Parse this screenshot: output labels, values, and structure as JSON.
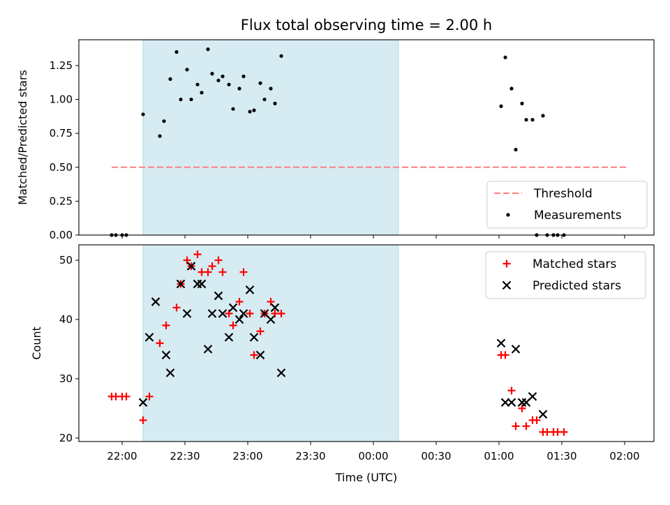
{
  "chart_data": {
    "title": "Flux total observing time = 2.00 h",
    "xlabel": "Time (UTC)",
    "x_ticks": [
      "22:00",
      "22:30",
      "23:00",
      "23:30",
      "00:00",
      "00:30",
      "01:00",
      "01:30",
      "02:00"
    ],
    "colors": {
      "threshold": "#ff7f7f",
      "matched": "#ff0000",
      "predicted": "#000000",
      "shade": "#add8e6"
    },
    "shaded_interval": [
      "22:10",
      "00:12"
    ],
    "panels": [
      {
        "type": "scatter",
        "ylabel": "Matched/Predicted stars",
        "ylim": [
          0,
          1.44
        ],
        "y_ticks": [
          "0.00",
          "0.25",
          "0.50",
          "0.75",
          "1.00",
          "1.25"
        ],
        "threshold": {
          "name": "Threshold",
          "value": 0.5,
          "x_range": [
            "21:55",
            "02:02"
          ]
        },
        "legend": {
          "position": "lower right",
          "entries": [
            "Threshold",
            "Measurements"
          ]
        },
        "series": [
          {
            "name": "Measurements",
            "points": [
              [
                "21:55",
                0.0
              ],
              [
                "21:57",
                0.0
              ],
              [
                "22:00",
                0.0
              ],
              [
                "22:02",
                0.0
              ],
              [
                "22:10",
                0.89
              ],
              [
                "22:18",
                0.73
              ],
              [
                "22:20",
                0.84
              ],
              [
                "22:23",
                1.15
              ],
              [
                "22:26",
                1.35
              ],
              [
                "22:28",
                1.0
              ],
              [
                "22:31",
                1.22
              ],
              [
                "22:33",
                1.0
              ],
              [
                "22:36",
                1.11
              ],
              [
                "22:38",
                1.05
              ],
              [
                "22:41",
                1.37
              ],
              [
                "22:43",
                1.19
              ],
              [
                "22:46",
                1.14
              ],
              [
                "22:48",
                1.17
              ],
              [
                "22:51",
                1.11
              ],
              [
                "22:53",
                0.93
              ],
              [
                "22:56",
                1.08
              ],
              [
                "22:58",
                1.17
              ],
              [
                "23:01",
                0.91
              ],
              [
                "23:03",
                0.92
              ],
              [
                "23:06",
                1.12
              ],
              [
                "23:08",
                1.0
              ],
              [
                "23:11",
                1.08
              ],
              [
                "23:13",
                0.97
              ],
              [
                "23:16",
                1.32
              ],
              [
                "01:01",
                0.95
              ],
              [
                "01:03",
                1.31
              ],
              [
                "01:06",
                1.08
              ],
              [
                "01:08",
                0.63
              ],
              [
                "01:11",
                0.97
              ],
              [
                "01:13",
                0.85
              ],
              [
                "01:16",
                0.85
              ],
              [
                "01:18",
                0.0
              ],
              [
                "01:21",
                0.88
              ],
              [
                "01:23",
                0.0
              ],
              [
                "01:26",
                0.0
              ],
              [
                "01:28",
                0.0
              ],
              [
                "01:31",
                0.0
              ]
            ]
          }
        ]
      },
      {
        "type": "scatter",
        "ylabel": "Count",
        "ylim": [
          19.4,
          52.6
        ],
        "y_ticks": [
          "20",
          "30",
          "40",
          "50"
        ],
        "legend": {
          "position": "upper right",
          "entries": [
            "Matched stars",
            "Predicted stars"
          ]
        },
        "series": [
          {
            "name": "Matched stars",
            "marker": "plus",
            "points": [
              [
                "21:55",
                27
              ],
              [
                "21:57",
                27
              ],
              [
                "22:00",
                27
              ],
              [
                "22:02",
                27
              ],
              [
                "22:10",
                23
              ],
              [
                "22:13",
                27
              ],
              [
                "22:18",
                36
              ],
              [
                "22:21",
                39
              ],
              [
                "22:26",
                42
              ],
              [
                "22:28",
                46
              ],
              [
                "22:31",
                50
              ],
              [
                "22:33",
                49
              ],
              [
                "22:36",
                51
              ],
              [
                "22:38",
                48
              ],
              [
                "22:41",
                48
              ],
              [
                "22:43",
                49
              ],
              [
                "22:46",
                50
              ],
              [
                "22:48",
                48
              ],
              [
                "22:51",
                41
              ],
              [
                "22:53",
                39
              ],
              [
                "22:56",
                43
              ],
              [
                "22:58",
                48
              ],
              [
                "23:01",
                41
              ],
              [
                "23:03",
                34
              ],
              [
                "23:06",
                38
              ],
              [
                "23:08",
                41
              ],
              [
                "23:11",
                43
              ],
              [
                "23:13",
                41
              ],
              [
                "23:16",
                41
              ],
              [
                "01:01",
                34
              ],
              [
                "01:03",
                34
              ],
              [
                "01:06",
                28
              ],
              [
                "01:08",
                22
              ],
              [
                "01:11",
                25
              ],
              [
                "01:13",
                22
              ],
              [
                "01:16",
                23
              ],
              [
                "01:18",
                23
              ],
              [
                "01:21",
                21
              ],
              [
                "01:23",
                21
              ],
              [
                "01:26",
                21
              ],
              [
                "01:28",
                21
              ],
              [
                "01:31",
                21
              ]
            ]
          },
          {
            "name": "Predicted stars",
            "marker": "x",
            "points": [
              [
                "22:10",
                26
              ],
              [
                "22:13",
                37
              ],
              [
                "22:16",
                43
              ],
              [
                "22:21",
                34
              ],
              [
                "22:23",
                31
              ],
              [
                "22:28",
                46
              ],
              [
                "22:31",
                41
              ],
              [
                "22:33",
                49
              ],
              [
                "22:36",
                46
              ],
              [
                "22:38",
                46
              ],
              [
                "22:41",
                35
              ],
              [
                "22:43",
                41
              ],
              [
                "22:46",
                44
              ],
              [
                "22:48",
                41
              ],
              [
                "22:51",
                37
              ],
              [
                "22:53",
                42
              ],
              [
                "22:56",
                40
              ],
              [
                "22:58",
                41
              ],
              [
                "23:01",
                45
              ],
              [
                "23:03",
                37
              ],
              [
                "23:06",
                34
              ],
              [
                "23:08",
                41
              ],
              [
                "23:11",
                40
              ],
              [
                "23:13",
                42
              ],
              [
                "23:16",
                31
              ],
              [
                "01:01",
                36
              ],
              [
                "01:03",
                26
              ],
              [
                "01:06",
                26
              ],
              [
                "01:08",
                35
              ],
              [
                "01:11",
                26
              ],
              [
                "01:13",
                26
              ],
              [
                "01:16",
                27
              ],
              [
                "01:21",
                24
              ]
            ]
          }
        ]
      }
    ]
  }
}
